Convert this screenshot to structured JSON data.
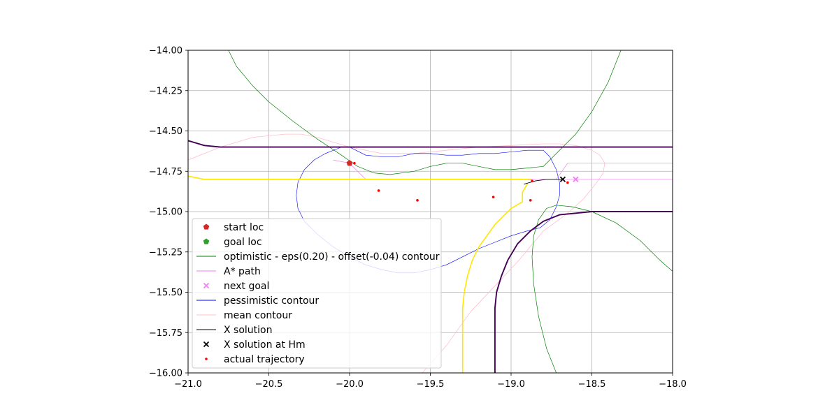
{
  "chart_data": {
    "type": "line",
    "title": "",
    "xlabel": "",
    "ylabel": "",
    "xlim": [
      -21.0,
      -18.0
    ],
    "ylim": [
      -16.0,
      -14.0
    ],
    "grid": true,
    "legend_position": "lower-left",
    "x_ticks": [
      -21.0,
      -20.5,
      -20.0,
      -19.5,
      -19.0,
      -18.5,
      -18.0
    ],
    "x_tick_labels": [
      "−21.0",
      "−20.5",
      "−20.0",
      "−19.5",
      "−19.0",
      "−18.5",
      "−18.0"
    ],
    "y_ticks": [
      -14.0,
      -14.25,
      -14.5,
      -14.75,
      -15.0,
      -15.25,
      -15.5,
      -15.75,
      -16.0
    ],
    "y_tick_labels": [
      "−14.00",
      "−14.25",
      "−14.50",
      "−14.75",
      "−15.00",
      "−15.25",
      "−15.50",
      "−15.75",
      "−16.00"
    ],
    "legend": [
      {
        "label": "start loc",
        "kind": "marker",
        "marker": "pentagon",
        "color": "#d62728"
      },
      {
        "label": "goal loc",
        "kind": "marker",
        "marker": "pentagon",
        "color": "#2ca02c"
      },
      {
        "label": "optimistic - eps(0.20) - offset(-0.04) contour",
        "kind": "line",
        "color": "#008000"
      },
      {
        "label": "A* path",
        "kind": "line",
        "color": "#ee82ee"
      },
      {
        "label": "next goal",
        "kind": "marker",
        "marker": "x",
        "color": "#ee82ee"
      },
      {
        "label": "pessimistic contour",
        "kind": "line",
        "color": "#0000ff"
      },
      {
        "label": "mean contour",
        "kind": "line",
        "color": "#ffc0cb"
      },
      {
        "label": "X solution",
        "kind": "line",
        "color": "#000000"
      },
      {
        "label": "X solution at Hm",
        "kind": "marker",
        "marker": "x",
        "color": "#000000"
      },
      {
        "label": "actual trajectory",
        "kind": "marker",
        "marker": "dot",
        "color": "#ff0000"
      }
    ],
    "series": [
      {
        "type": "line",
        "color": "#ffc0cb",
        "width": 0.8,
        "points": [
          [
            -21.0,
            -14.68
          ],
          [
            -20.8,
            -14.6
          ],
          [
            -20.6,
            -14.54
          ],
          [
            -20.4,
            -14.52
          ],
          [
            -20.3,
            -14.52
          ],
          [
            -20.2,
            -14.54
          ],
          [
            -20.0,
            -14.6
          ],
          [
            -19.8,
            -14.64
          ],
          [
            -19.6,
            -14.64
          ],
          [
            -19.4,
            -14.62
          ],
          [
            -19.2,
            -14.6
          ],
          [
            -19.0,
            -14.59
          ],
          [
            -18.8,
            -14.58
          ],
          [
            -18.7,
            -14.58
          ],
          [
            -18.6,
            -14.59
          ],
          [
            -18.5,
            -14.62
          ],
          [
            -18.45,
            -14.65
          ],
          [
            -18.42,
            -14.7
          ],
          [
            -18.43,
            -14.76
          ],
          [
            -18.47,
            -14.82
          ],
          [
            -18.55,
            -14.92
          ],
          [
            -18.65,
            -15.01
          ],
          [
            -18.8,
            -15.12
          ],
          [
            -18.95,
            -15.3
          ],
          [
            -19.1,
            -15.46
          ],
          [
            -19.25,
            -15.62
          ],
          [
            -19.4,
            -15.83
          ],
          [
            -19.55,
            -16.0
          ]
        ]
      },
      {
        "type": "line",
        "color": "#008000",
        "width": 0.7,
        "points": [
          [
            -20.75,
            -14.0
          ],
          [
            -20.7,
            -14.1
          ],
          [
            -20.6,
            -14.22
          ],
          [
            -20.5,
            -14.32
          ],
          [
            -20.35,
            -14.44
          ],
          [
            -20.2,
            -14.55
          ],
          [
            -20.05,
            -14.65
          ],
          [
            -19.95,
            -14.72
          ],
          [
            -19.85,
            -14.76
          ],
          [
            -19.75,
            -14.77
          ],
          [
            -19.6,
            -14.75
          ],
          [
            -19.5,
            -14.72
          ],
          [
            -19.4,
            -14.7
          ],
          [
            -19.3,
            -14.7
          ],
          [
            -19.2,
            -14.72
          ],
          [
            -19.1,
            -14.74
          ],
          [
            -19.0,
            -14.74
          ],
          [
            -18.9,
            -14.73
          ],
          [
            -18.8,
            -14.72
          ],
          [
            -18.75,
            -14.67
          ],
          [
            -18.6,
            -14.52
          ],
          [
            -18.5,
            -14.38
          ],
          [
            -18.4,
            -14.2
          ],
          [
            -18.32,
            -14.0
          ]
        ]
      },
      {
        "type": "line",
        "color": "#008000",
        "width": 0.7,
        "points": [
          [
            -18.72,
            -16.0
          ],
          [
            -18.78,
            -15.85
          ],
          [
            -18.83,
            -15.65
          ],
          [
            -18.86,
            -15.45
          ],
          [
            -18.87,
            -15.28
          ],
          [
            -18.86,
            -15.15
          ],
          [
            -18.83,
            -15.05
          ],
          [
            -18.78,
            -14.98
          ],
          [
            -18.72,
            -14.96
          ],
          [
            -18.62,
            -14.97
          ],
          [
            -18.5,
            -15.0
          ],
          [
            -18.35,
            -15.07
          ],
          [
            -18.2,
            -15.18
          ],
          [
            -18.08,
            -15.3
          ],
          [
            -18.0,
            -15.37
          ]
        ]
      },
      {
        "type": "line",
        "color": "#0000ff",
        "width": 0.6,
        "points": [
          [
            -20.0,
            -14.6
          ],
          [
            -19.9,
            -14.65
          ],
          [
            -19.8,
            -14.66
          ],
          [
            -19.7,
            -14.66
          ],
          [
            -19.6,
            -14.64
          ],
          [
            -19.5,
            -14.64
          ],
          [
            -19.4,
            -14.65
          ],
          [
            -19.3,
            -14.65
          ],
          [
            -19.2,
            -14.64
          ],
          [
            -19.1,
            -14.64
          ],
          [
            -19.0,
            -14.63
          ],
          [
            -18.9,
            -14.62
          ],
          [
            -18.8,
            -14.62
          ],
          [
            -18.76,
            -14.66
          ],
          [
            -18.72,
            -14.74
          ],
          [
            -18.7,
            -14.82
          ],
          [
            -18.7,
            -14.9
          ],
          [
            -18.72,
            -14.97
          ],
          [
            -18.76,
            -15.05
          ],
          [
            -18.82,
            -15.1
          ],
          [
            -18.9,
            -15.12
          ],
          [
            -19.0,
            -15.15
          ],
          [
            -19.1,
            -15.19
          ],
          [
            -19.2,
            -15.23
          ],
          [
            -19.3,
            -15.28
          ],
          [
            -19.4,
            -15.33
          ],
          [
            -19.5,
            -15.36
          ],
          [
            -19.6,
            -15.38
          ],
          [
            -19.7,
            -15.38
          ],
          [
            -19.8,
            -15.36
          ],
          [
            -19.9,
            -15.33
          ],
          [
            -20.0,
            -15.28
          ],
          [
            -20.1,
            -15.22
          ],
          [
            -20.2,
            -15.14
          ],
          [
            -20.28,
            -15.06
          ],
          [
            -20.32,
            -14.98
          ],
          [
            -20.33,
            -14.9
          ],
          [
            -20.32,
            -14.82
          ],
          [
            -20.28,
            -14.74
          ],
          [
            -20.22,
            -14.68
          ],
          [
            -20.15,
            -14.64
          ],
          [
            -20.05,
            -14.6
          ],
          [
            -20.0,
            -14.6
          ]
        ]
      },
      {
        "type": "line",
        "color": "#ee82ee",
        "width": 0.7,
        "points": [
          [
            -20.1,
            -14.68
          ],
          [
            -20.0,
            -14.7
          ],
          [
            -19.95,
            -14.75
          ],
          [
            -19.9,
            -14.8
          ],
          [
            -19.5,
            -14.8
          ],
          [
            -19.0,
            -14.8
          ],
          [
            -18.6,
            -14.8
          ],
          [
            -18.0,
            -14.8
          ]
        ]
      },
      {
        "type": "line",
        "color": "#ee82ee",
        "width": 0.7,
        "points": [
          [
            -18.72,
            -14.8
          ],
          [
            -18.65,
            -14.7
          ],
          [
            -18.0,
            -14.7
          ]
        ]
      },
      {
        "type": "line",
        "color": "#ffa500",
        "width": 1.0,
        "points": [
          [
            -20.0,
            -14.8
          ],
          [
            -19.5,
            -14.8
          ],
          [
            -19.0,
            -14.8
          ],
          [
            -18.88,
            -14.8
          ]
        ]
      },
      {
        "type": "line",
        "color": "#ffe800",
        "width": 1.6,
        "points": [
          [
            -21.0,
            -14.78
          ],
          [
            -20.9,
            -14.8
          ],
          [
            -20.8,
            -14.8
          ],
          [
            -20.0,
            -14.8
          ],
          [
            -19.5,
            -14.8
          ],
          [
            -19.0,
            -14.8
          ],
          [
            -18.9,
            -14.8
          ]
        ]
      },
      {
        "type": "line",
        "color": "#ffe800",
        "width": 1.6,
        "points": [
          [
            -19.3,
            -16.0
          ],
          [
            -19.3,
            -15.6
          ],
          [
            -19.29,
            -15.5
          ],
          [
            -19.27,
            -15.4
          ],
          [
            -19.24,
            -15.3
          ],
          [
            -19.2,
            -15.22
          ],
          [
            -19.1,
            -15.08
          ],
          [
            -19.0,
            -14.98
          ],
          [
            -18.93,
            -14.94
          ],
          [
            -18.93,
            -14.88
          ],
          [
            -18.9,
            -14.83
          ]
        ]
      },
      {
        "type": "line",
        "color": "#440154",
        "width": 1.9,
        "points": [
          [
            -21.0,
            -14.56
          ],
          [
            -20.9,
            -14.59
          ],
          [
            -20.8,
            -14.6
          ],
          [
            -20.0,
            -14.6
          ],
          [
            -19.0,
            -14.6
          ],
          [
            -18.0,
            -14.6
          ]
        ]
      },
      {
        "type": "line",
        "color": "#440154",
        "width": 1.9,
        "points": [
          [
            -19.1,
            -16.0
          ],
          [
            -19.1,
            -15.6
          ],
          [
            -19.09,
            -15.5
          ],
          [
            -19.06,
            -15.4
          ],
          [
            -19.02,
            -15.3
          ],
          [
            -18.96,
            -15.2
          ],
          [
            -18.88,
            -15.12
          ],
          [
            -18.8,
            -15.06
          ],
          [
            -18.7,
            -15.02
          ],
          [
            -18.6,
            -15.01
          ],
          [
            -18.5,
            -15.0
          ],
          [
            -18.0,
            -15.0
          ]
        ]
      },
      {
        "type": "line",
        "color": "#000000",
        "width": 0.9,
        "points": [
          [
            -18.92,
            -14.83
          ],
          [
            -18.85,
            -14.81
          ],
          [
            -18.78,
            -14.8
          ],
          [
            -18.68,
            -14.8
          ]
        ]
      }
    ],
    "markers": [
      {
        "name": "start-loc",
        "type": "pentagon",
        "color": "#d62728",
        "x": -20.0,
        "y": -14.7
      },
      {
        "name": "goal-loc",
        "type": "pentagon",
        "color": "#2ca02c",
        "x": -20.0,
        "y": -14.7
      },
      {
        "name": "next-goal",
        "type": "x",
        "color": "#ee82ee",
        "x": -18.6,
        "y": -14.8
      },
      {
        "name": "x-solution-at-hm",
        "type": "x",
        "color": "#000000",
        "x": -18.68,
        "y": -14.8
      }
    ],
    "trajectory": [
      [
        -20.0,
        -14.7
      ],
      [
        -19.97,
        -14.7
      ],
      [
        -19.82,
        -14.87
      ],
      [
        -19.58,
        -14.93
      ],
      [
        -19.11,
        -14.91
      ],
      [
        -18.88,
        -14.93
      ],
      [
        -18.87,
        -14.81
      ],
      [
        -18.65,
        -14.82
      ]
    ]
  }
}
